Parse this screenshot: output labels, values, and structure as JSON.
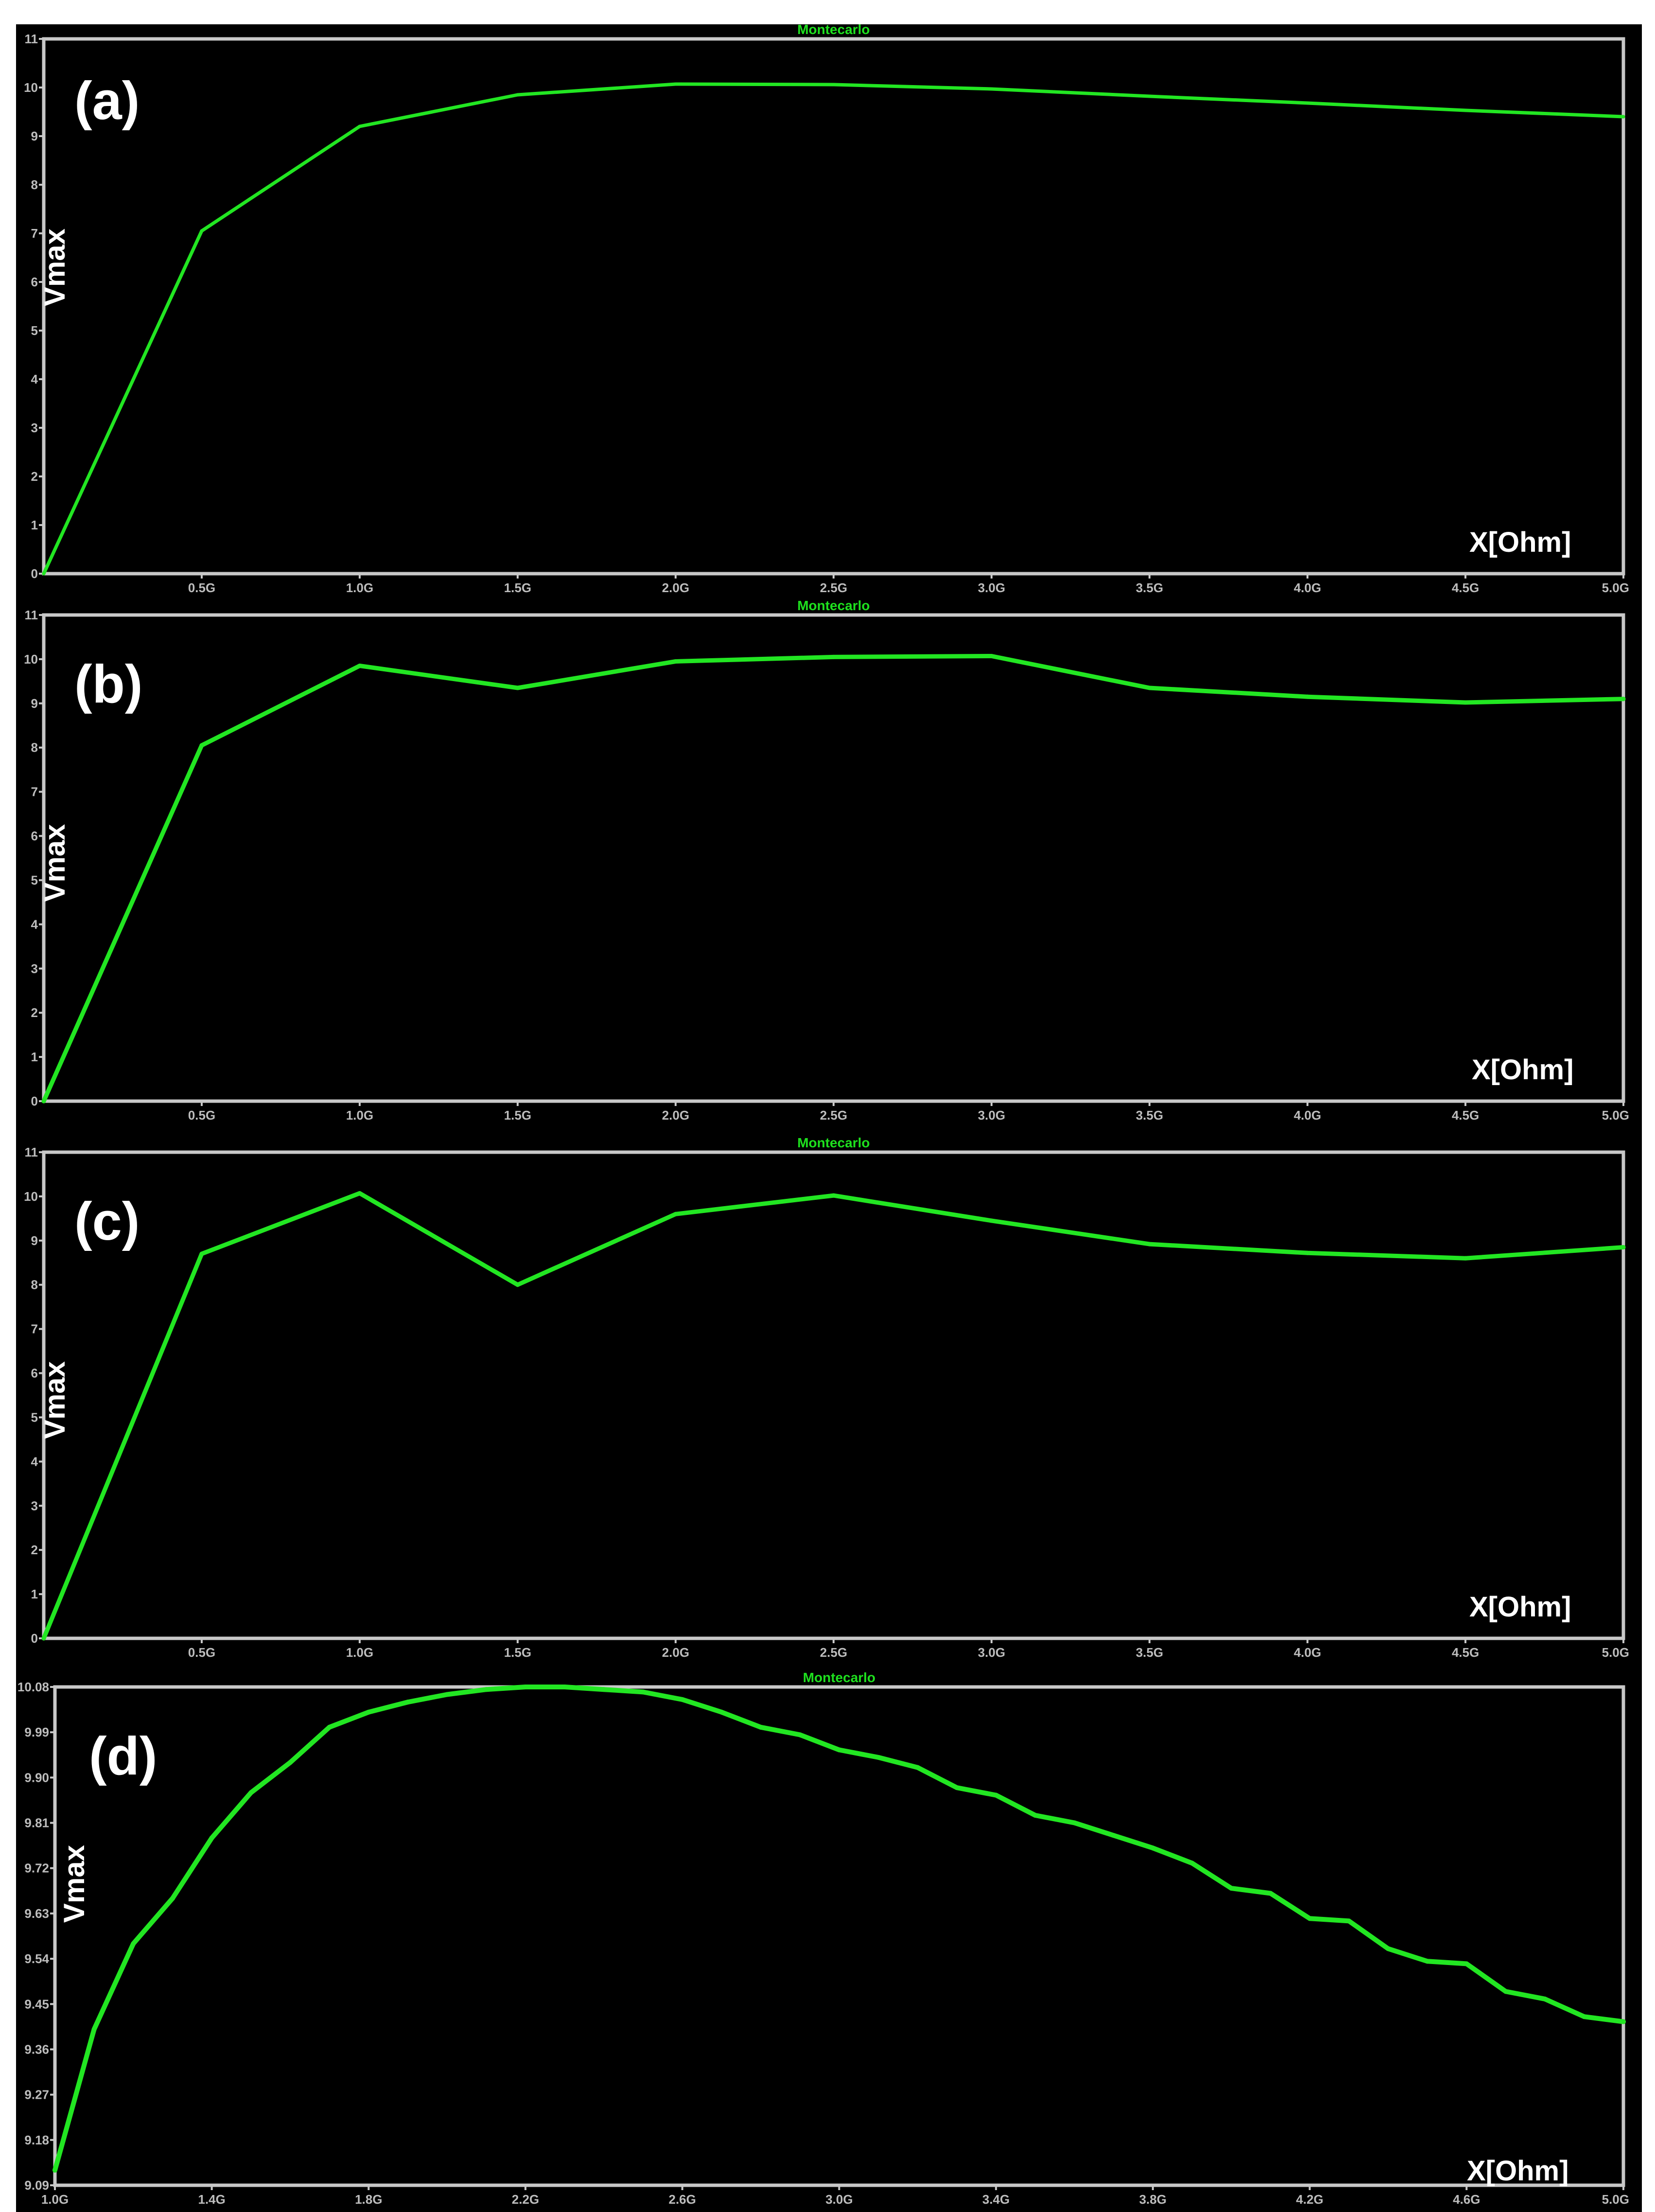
{
  "colors": {
    "background": "#000000",
    "line": "#22e622",
    "frame": "#c8c8c8",
    "tick_text": "#bdbdbd",
    "title_text": "#1ee01e",
    "label_text": "#ffffff"
  },
  "chart_data": [
    {
      "type": "line",
      "panel_label": "(a)",
      "title": "Montecarlo",
      "xlabel": "X[Ohm]",
      "ylabel": "Vmax",
      "x_tick_labels": [
        "0.5G",
        "1.0G",
        "1.5G",
        "2.0G",
        "2.5G",
        "3.0G",
        "3.5G",
        "4.0G",
        "4.5G",
        "5.0G"
      ],
      "y_tick_labels": [
        "0",
        "1",
        "2",
        "3",
        "4",
        "5",
        "6",
        "7",
        "8",
        "9",
        "10",
        "11"
      ],
      "xlim": [
        0,
        5.0
      ],
      "ylim": [
        0,
        11
      ],
      "x_tick_values": [
        0.5,
        1.0,
        1.5,
        2.0,
        2.5,
        3.0,
        3.5,
        4.0,
        4.5,
        5.0
      ],
      "y_tick_values": [
        0,
        1,
        2,
        3,
        4,
        5,
        6,
        7,
        8,
        9,
        10,
        11
      ],
      "x_unit": "G",
      "series": [
        {
          "x": [
            0,
            0.5,
            1.0,
            1.5,
            2.0,
            2.5,
            3.0,
            3.5,
            4.0,
            4.5,
            5.0
          ],
          "y": [
            0,
            7.05,
            9.2,
            9.85,
            10.07,
            10.06,
            9.97,
            9.82,
            9.68,
            9.53,
            9.4
          ]
        }
      ]
    },
    {
      "type": "line",
      "panel_label": "(b)",
      "title": "Montecarlo",
      "xlabel": "X[Ohm]",
      "ylabel": "Vmax",
      "x_tick_labels": [
        "0.5G",
        "1.0G",
        "1.5G",
        "2.0G",
        "2.5G",
        "3.0G",
        "3.5G",
        "4.0G",
        "4.5G",
        "5.0G"
      ],
      "y_tick_labels": [
        "0",
        "1",
        "2",
        "3",
        "4",
        "5",
        "6",
        "7",
        "8",
        "9",
        "10",
        "11"
      ],
      "xlim": [
        0,
        5.0
      ],
      "ylim": [
        0,
        11
      ],
      "x_tick_values": [
        0.5,
        1.0,
        1.5,
        2.0,
        2.5,
        3.0,
        3.5,
        4.0,
        4.5,
        5.0
      ],
      "y_tick_values": [
        0,
        1,
        2,
        3,
        4,
        5,
        6,
        7,
        8,
        9,
        10,
        11
      ],
      "x_unit": "G",
      "series": [
        {
          "x": [
            0,
            0.5,
            1.0,
            1.5,
            2.0,
            2.5,
            3.0,
            3.5,
            4.0,
            4.5,
            5.0
          ],
          "y": [
            0,
            8.05,
            9.85,
            9.35,
            9.95,
            10.05,
            10.07,
            9.35,
            9.15,
            9.02,
            9.1
          ]
        }
      ]
    },
    {
      "type": "line",
      "panel_label": "(c)",
      "title": "Montecarlo",
      "xlabel": "X[Ohm]",
      "ylabel": "Vmax",
      "x_tick_labels": [
        "0.5G",
        "1.0G",
        "1.5G",
        "2.0G",
        "2.5G",
        "3.0G",
        "3.5G",
        "4.0G",
        "4.5G",
        "5.0G"
      ],
      "y_tick_labels": [
        "0",
        "1",
        "2",
        "3",
        "4",
        "5",
        "6",
        "7",
        "8",
        "9",
        "10",
        "11"
      ],
      "xlim": [
        0,
        5.0
      ],
      "ylim": [
        0,
        11
      ],
      "x_tick_values": [
        0.5,
        1.0,
        1.5,
        2.0,
        2.5,
        3.0,
        3.5,
        4.0,
        4.5,
        5.0
      ],
      "y_tick_values": [
        0,
        1,
        2,
        3,
        4,
        5,
        6,
        7,
        8,
        9,
        10,
        11
      ],
      "x_unit": "G",
      "series": [
        {
          "x": [
            0,
            0.5,
            1.0,
            1.5,
            2.0,
            2.5,
            3.0,
            3.5,
            4.0,
            4.5,
            5.0
          ],
          "y": [
            0,
            8.7,
            10.07,
            8.0,
            9.6,
            10.02,
            9.45,
            8.92,
            8.72,
            8.6,
            8.85
          ]
        }
      ]
    },
    {
      "type": "line",
      "panel_label": "(d)",
      "title": "Montecarlo",
      "xlabel": "X[Ohm]",
      "ylabel": "Vmax",
      "x_tick_labels": [
        "1.0G",
        "1.4G",
        "1.8G",
        "2.2G",
        "2.6G",
        "3.0G",
        "3.4G",
        "3.8G",
        "4.2G",
        "4.6G",
        "5.0G"
      ],
      "y_tick_labels": [
        "9.09",
        "9.18",
        "9.27",
        "9.36",
        "9.45",
        "9.54",
        "9.63",
        "9.72",
        "9.81",
        "9.90",
        "9.99",
        "10.08"
      ],
      "xlim": [
        1.0,
        5.0
      ],
      "ylim": [
        9.09,
        10.08
      ],
      "x_tick_values": [
        1.0,
        1.4,
        1.8,
        2.2,
        2.6,
        3.0,
        3.4,
        3.8,
        4.2,
        4.6,
        5.0
      ],
      "y_tick_values": [
        9.09,
        9.18,
        9.27,
        9.36,
        9.45,
        9.54,
        9.63,
        9.72,
        9.81,
        9.9,
        9.99,
        10.08
      ],
      "x_unit": "G",
      "series": [
        {
          "x": [
            1.0,
            1.1,
            1.2,
            1.3,
            1.4,
            1.5,
            1.6,
            1.7,
            1.8,
            1.9,
            2.0,
            2.1,
            2.2,
            2.3,
            2.4,
            2.5,
            2.6,
            2.7,
            2.8,
            2.9,
            3.0,
            3.1,
            3.2,
            3.3,
            3.4,
            3.5,
            3.6,
            3.7,
            3.8,
            3.9,
            4.0,
            4.1,
            4.2,
            4.3,
            4.4,
            4.5,
            4.6,
            4.7,
            4.8,
            4.9,
            5.0
          ],
          "y": [
            9.12,
            9.4,
            9.57,
            9.66,
            9.78,
            9.87,
            9.93,
            10.0,
            10.03,
            10.05,
            10.065,
            10.075,
            10.08,
            10.08,
            10.075,
            10.07,
            10.055,
            10.03,
            10.0,
            9.985,
            9.955,
            9.94,
            9.92,
            9.88,
            9.865,
            9.825,
            9.81,
            9.785,
            9.76,
            9.73,
            9.68,
            9.67,
            9.62,
            9.615,
            9.56,
            9.535,
            9.53,
            9.475,
            9.46,
            9.425,
            9.415
          ]
        }
      ]
    }
  ]
}
